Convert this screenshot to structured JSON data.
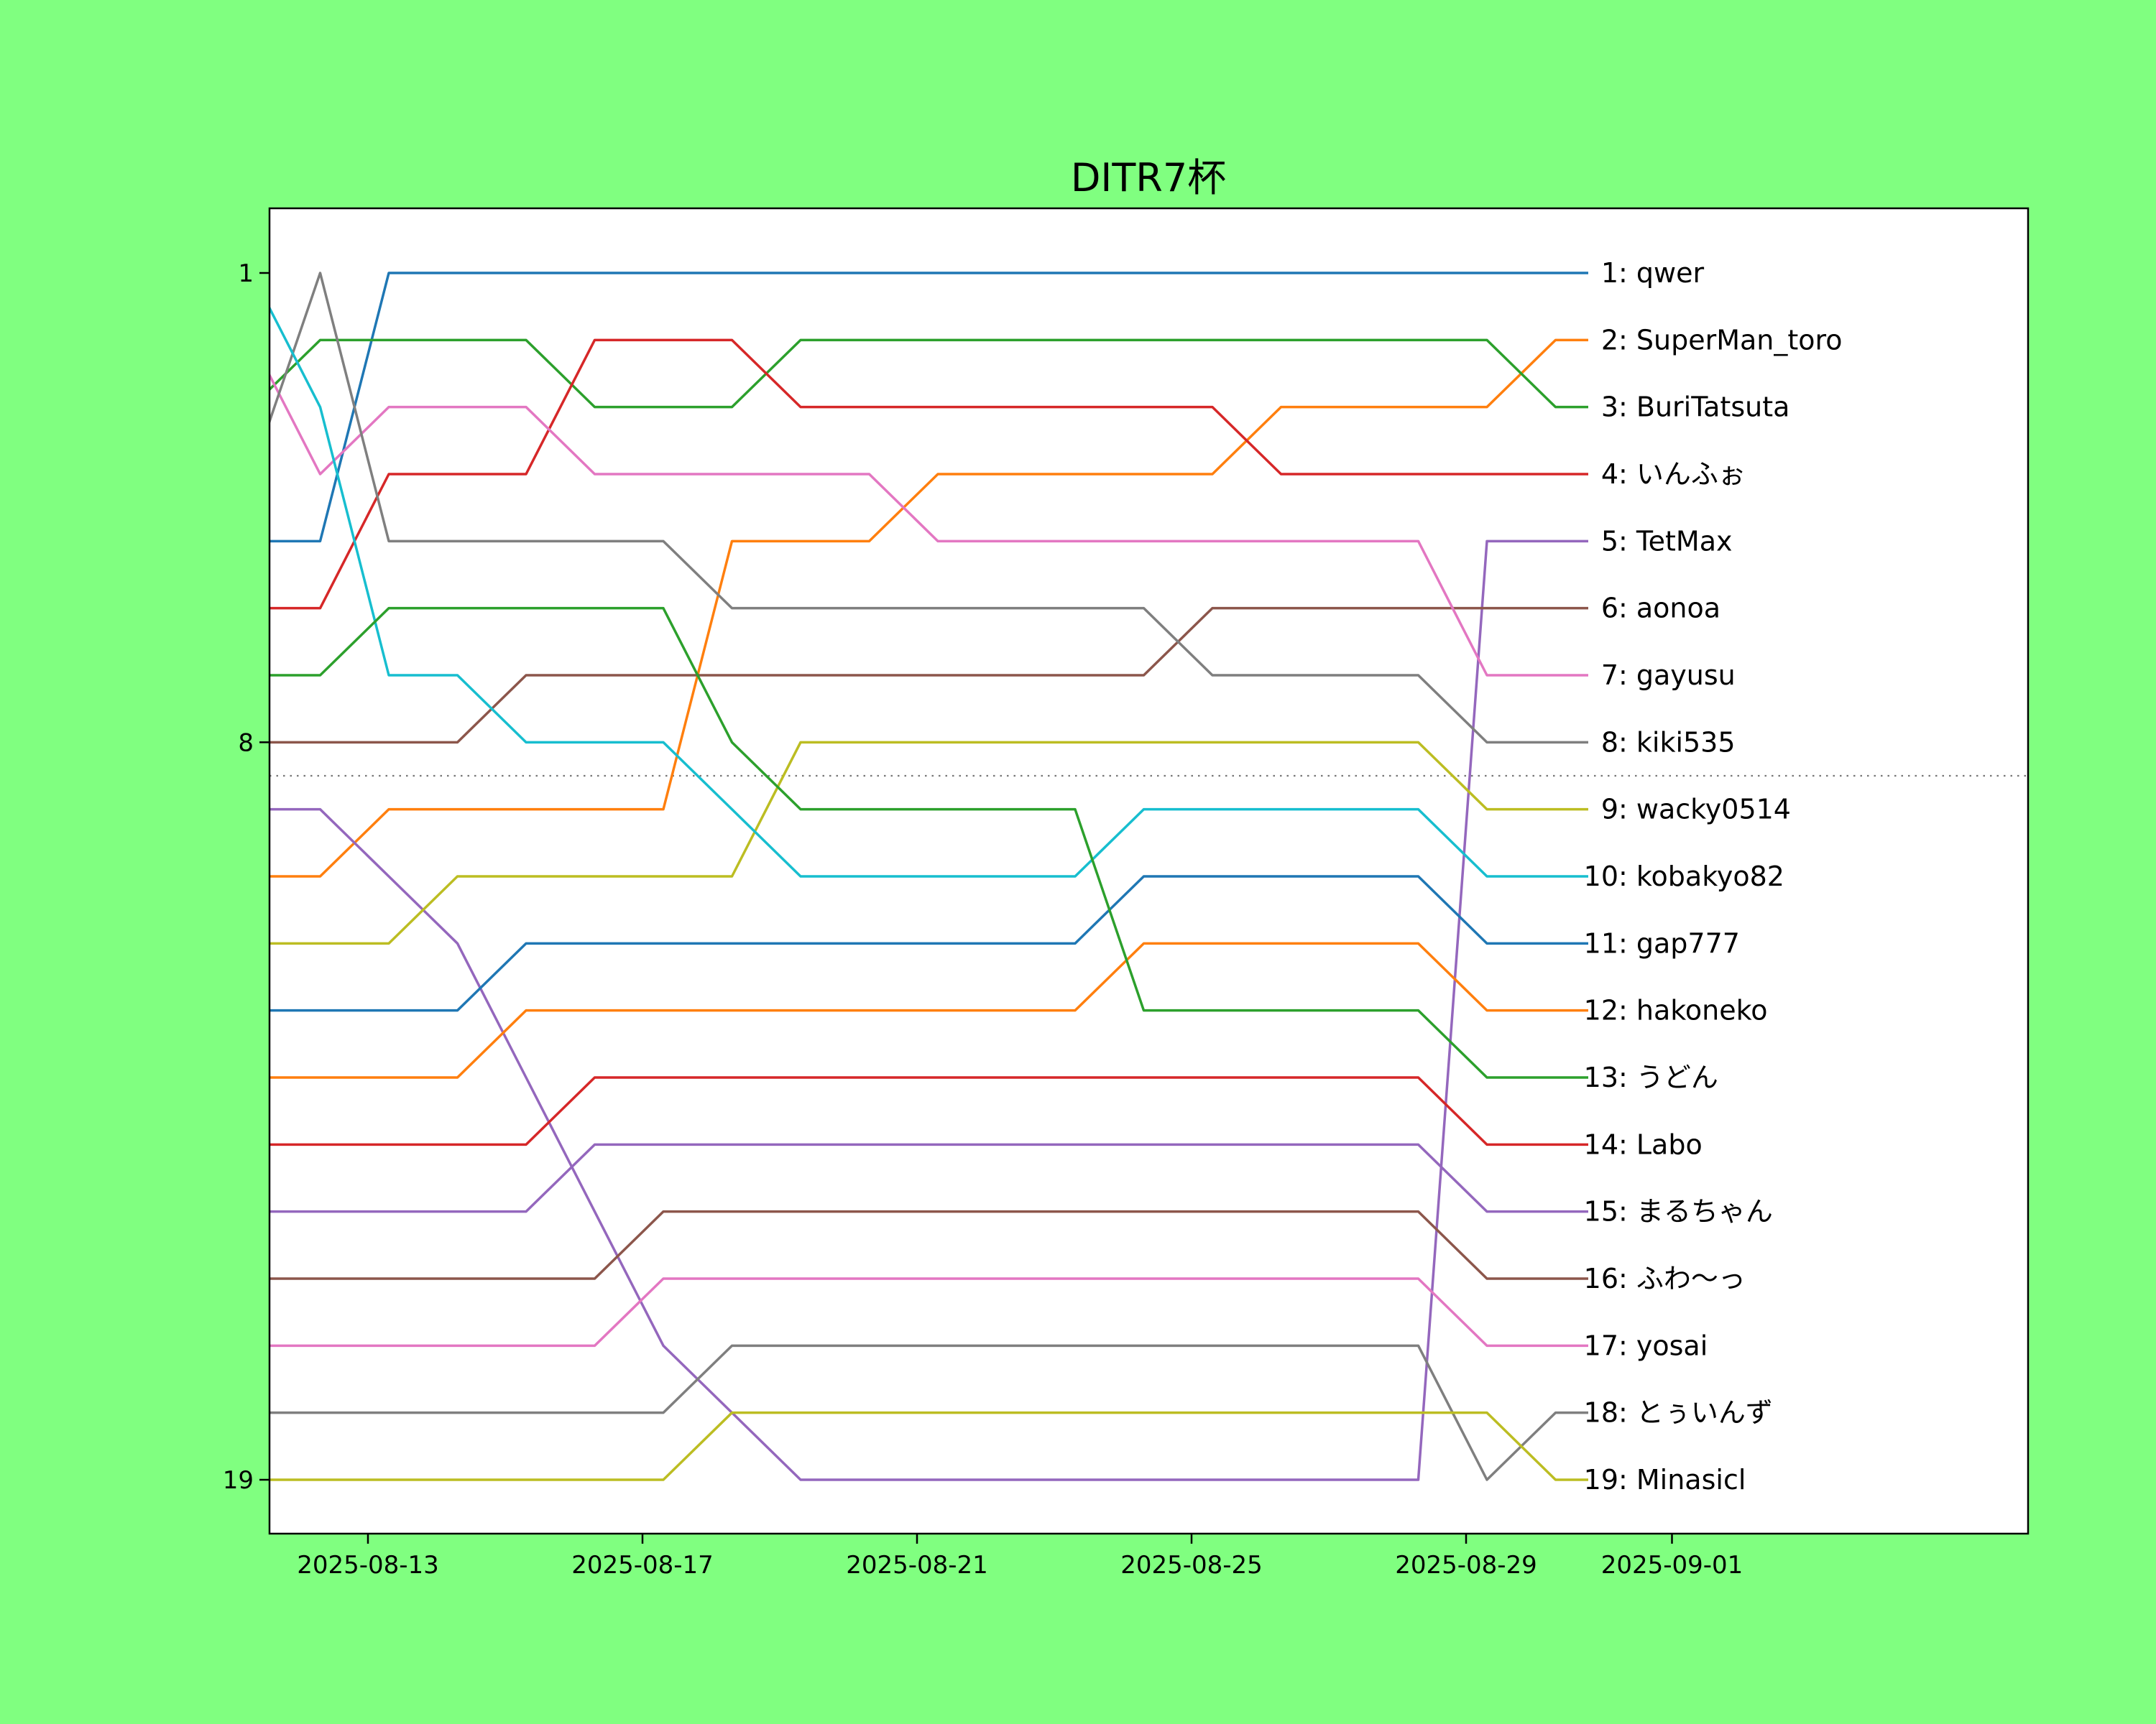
{
  "figure": {
    "background_color": "#80ff80",
    "plot_background_color": "#ffffff",
    "border_color": "#000000"
  },
  "chart_data": {
    "type": "line",
    "variant": "bump-chart",
    "title": "DITR7杯",
    "xlabel": "",
    "ylabel": "",
    "grid": false,
    "legend_position": "right-inline-labels",
    "rank_range": [
      1,
      19
    ],
    "promotion_cutoff_after_rank": 8,
    "separator_line_style": "dotted",
    "separator_line_color": "#777777",
    "x_axis": {
      "tick_labels": [
        "2025-08-13",
        "2025-08-17",
        "2025-08-21",
        "2025-08-25",
        "2025-08-29",
        "2025-09-01"
      ]
    },
    "y_axis": {
      "tick_labels": [
        "1",
        "8",
        "19"
      ]
    },
    "dates": [
      "2025-08-11",
      "2025-08-12",
      "2025-08-13",
      "2025-08-14",
      "2025-08-15",
      "2025-08-16",
      "2025-08-17",
      "2025-08-18",
      "2025-08-19",
      "2025-08-20",
      "2025-08-21",
      "2025-08-22",
      "2025-08-23",
      "2025-08-24",
      "2025-08-25",
      "2025-08-26",
      "2025-08-27",
      "2025-08-28",
      "2025-08-29",
      "2025-08-30",
      "2025-08-31"
    ],
    "series": [
      {
        "final_rank": 1,
        "name": "qwer",
        "label": "1: qwer",
        "color": "#1f77b4",
        "ranks": [
          5,
          5,
          1,
          1,
          1,
          1,
          1,
          1,
          1,
          1,
          1,
          1,
          1,
          1,
          1,
          1,
          1,
          1,
          1,
          1,
          1
        ]
      },
      {
        "final_rank": 2,
        "name": "SuperMan_toro",
        "label": "2: SuperMan_toro",
        "color": "#ff7f0e",
        "ranks": [
          10,
          10,
          9,
          9,
          9,
          9,
          9,
          5,
          5,
          5,
          4,
          4,
          4,
          4,
          4,
          3,
          3,
          3,
          3,
          2,
          2
        ]
      },
      {
        "final_rank": 3,
        "name": "BuriTatsuta",
        "label": "3: BuriTatsuta",
        "color": "#2ca02c",
        "ranks": [
          3,
          2,
          2,
          2,
          2,
          3,
          3,
          3,
          2,
          2,
          2,
          2,
          2,
          2,
          2,
          2,
          2,
          2,
          2,
          3,
          3
        ]
      },
      {
        "final_rank": 4,
        "name": "いんふぉ",
        "label": "4: いんふぉ",
        "color": "#d62728",
        "ranks": [
          6,
          6,
          4,
          4,
          4,
          2,
          2,
          2,
          3,
          3,
          3,
          3,
          3,
          3,
          3,
          4,
          4,
          4,
          4,
          4,
          4
        ]
      },
      {
        "final_rank": 5,
        "name": "TetMax",
        "label": "5: TetMax",
        "color": "#9467bd",
        "ranks": [
          9,
          9,
          10,
          11,
          13,
          15,
          17,
          18,
          19,
          19,
          19,
          19,
          19,
          19,
          19,
          19,
          19,
          19,
          5,
          5,
          5
        ]
      },
      {
        "final_rank": 6,
        "name": "aonoa",
        "label": "6: aonoa",
        "color": "#8c564b",
        "ranks": [
          8,
          8,
          8,
          8,
          7,
          7,
          7,
          7,
          7,
          7,
          7,
          7,
          7,
          7,
          6,
          6,
          6,
          6,
          6,
          6,
          6
        ]
      },
      {
        "final_rank": 7,
        "name": "gayusu",
        "label": "7: gayusu",
        "color": "#e377c2",
        "ranks": [
          2,
          4,
          3,
          3,
          3,
          4,
          4,
          4,
          4,
          4,
          5,
          5,
          5,
          5,
          5,
          5,
          5,
          5,
          7,
          7,
          7
        ]
      },
      {
        "final_rank": 8,
        "name": "kiki535",
        "label": "8: kiki535",
        "color": "#7f7f7f",
        "ranks": [
          4,
          1,
          5,
          5,
          5,
          5,
          5,
          6,
          6,
          6,
          6,
          6,
          6,
          6,
          7,
          7,
          7,
          7,
          8,
          8,
          8
        ]
      },
      {
        "final_rank": 9,
        "name": "wacky0514",
        "label": "9: wacky0514",
        "color": "#bcbd22",
        "ranks": [
          11,
          11,
          11,
          10,
          10,
          10,
          10,
          10,
          8,
          8,
          8,
          8,
          8,
          8,
          8,
          8,
          8,
          8,
          9,
          9,
          9
        ]
      },
      {
        "final_rank": 10,
        "name": "kobakyo82",
        "label": "10: kobakyo82",
        "color": "#17becf",
        "ranks": [
          1,
          3,
          7,
          7,
          8,
          8,
          8,
          9,
          10,
          10,
          10,
          10,
          10,
          9,
          9,
          9,
          9,
          9,
          10,
          10,
          10
        ]
      },
      {
        "final_rank": 11,
        "name": "gap777",
        "label": "11: gap777",
        "color": "#1f77b4",
        "ranks": [
          12,
          12,
          12,
          12,
          11,
          11,
          11,
          11,
          11,
          11,
          11,
          11,
          11,
          10,
          10,
          10,
          10,
          10,
          11,
          11,
          11
        ]
      },
      {
        "final_rank": 12,
        "name": "hakoneko",
        "label": "12: hakoneko",
        "color": "#ff7f0e",
        "ranks": [
          13,
          13,
          13,
          13,
          12,
          12,
          12,
          12,
          12,
          12,
          12,
          12,
          12,
          11,
          11,
          11,
          11,
          11,
          12,
          12,
          12
        ]
      },
      {
        "final_rank": 13,
        "name": "うどん",
        "label": "13: うどん",
        "color": "#2ca02c",
        "ranks": [
          7,
          7,
          6,
          6,
          6,
          6,
          6,
          8,
          9,
          9,
          9,
          9,
          9,
          12,
          12,
          12,
          12,
          12,
          13,
          13,
          13
        ]
      },
      {
        "final_rank": 14,
        "name": "Labo",
        "label": "14: Labo",
        "color": "#d62728",
        "ranks": [
          14,
          14,
          14,
          14,
          14,
          13,
          13,
          13,
          13,
          13,
          13,
          13,
          13,
          13,
          13,
          13,
          13,
          13,
          14,
          14,
          14
        ]
      },
      {
        "final_rank": 15,
        "name": "まるちゃん",
        "label": "15: まるちゃん",
        "color": "#9467bd",
        "ranks": [
          15,
          15,
          15,
          15,
          15,
          14,
          14,
          14,
          14,
          14,
          14,
          14,
          14,
          14,
          14,
          14,
          14,
          14,
          15,
          15,
          15
        ]
      },
      {
        "final_rank": 16,
        "name": "ふわ〜っ",
        "label": "16: ふわ〜っ",
        "color": "#8c564b",
        "ranks": [
          16,
          16,
          16,
          16,
          16,
          16,
          15,
          15,
          15,
          15,
          15,
          15,
          15,
          15,
          15,
          15,
          15,
          15,
          16,
          16,
          16
        ]
      },
      {
        "final_rank": 17,
        "name": "yosai",
        "label": "17: yosai",
        "color": "#e377c2",
        "ranks": [
          17,
          17,
          17,
          17,
          17,
          17,
          16,
          16,
          16,
          16,
          16,
          16,
          16,
          16,
          16,
          16,
          16,
          16,
          17,
          17,
          17
        ]
      },
      {
        "final_rank": 18,
        "name": "とぅいんず",
        "label": "18: とぅいんず",
        "color": "#7f7f7f",
        "ranks": [
          18,
          18,
          18,
          18,
          18,
          18,
          18,
          17,
          17,
          17,
          17,
          17,
          17,
          17,
          17,
          17,
          17,
          17,
          19,
          18,
          18
        ]
      },
      {
        "final_rank": 19,
        "name": "Minasicl",
        "label": "19: Minasicl",
        "color": "#bcbd22",
        "ranks": [
          19,
          19,
          19,
          19,
          19,
          19,
          19,
          18,
          18,
          18,
          18,
          18,
          18,
          18,
          18,
          18,
          18,
          18,
          18,
          19,
          19
        ]
      }
    ]
  }
}
